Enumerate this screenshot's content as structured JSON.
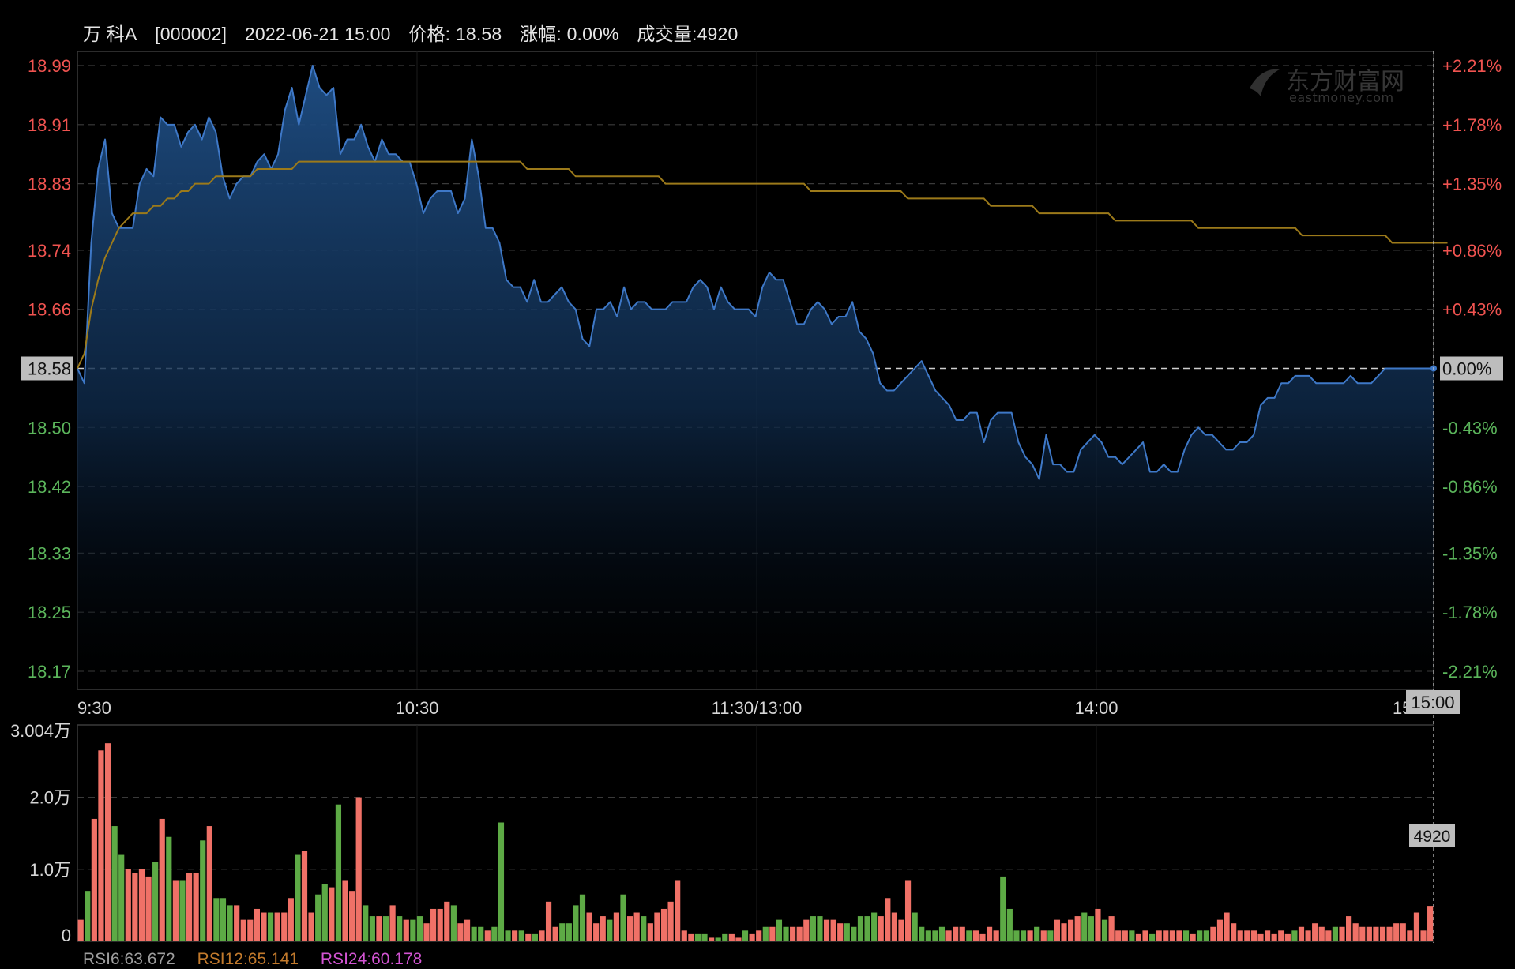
{
  "header": {
    "name": "万 科A",
    "code": "[000002]",
    "datetime": "2022-06-21 15:00",
    "price_label": "价格: 18.58",
    "change_label": "涨幅: 0.00%",
    "volume_label": "成交量:4920"
  },
  "watermark": {
    "cn": "东方财富网",
    "en": "eastmoney.com",
    "icon": "eastmoney-logo-icon"
  },
  "chart_data": {
    "type": "line",
    "prev_close": 18.58,
    "price_axis": {
      "left_ticks": [
        "18.99",
        "18.91",
        "18.83",
        "18.74",
        "18.66",
        "18.58",
        "18.50",
        "18.42",
        "18.33",
        "18.25",
        "18.17"
      ],
      "right_ticks": [
        "+2.21%",
        "+1.78%",
        "+1.35%",
        "+0.86%",
        "+0.43%",
        "0.00%",
        "-0.43%",
        "-0.86%",
        "-1.35%",
        "-1.78%",
        "-2.21%"
      ],
      "ylim": [
        18.17,
        18.99
      ]
    },
    "time_axis": {
      "ticks": [
        "9:30",
        "10:30",
        "11:30/13:00",
        "14:00",
        "15:00"
      ],
      "crosshair_label": "15:00"
    },
    "price_series": [
      18.58,
      18.56,
      18.75,
      18.85,
      18.89,
      18.79,
      18.77,
      18.77,
      18.77,
      18.83,
      18.85,
      18.84,
      18.92,
      18.91,
      18.91,
      18.88,
      18.9,
      18.91,
      18.89,
      18.92,
      18.9,
      18.84,
      18.81,
      18.83,
      18.84,
      18.84,
      18.86,
      18.87,
      18.85,
      18.87,
      18.93,
      18.96,
      18.91,
      18.95,
      18.99,
      18.96,
      18.95,
      18.96,
      18.87,
      18.89,
      18.89,
      18.91,
      18.88,
      18.86,
      18.89,
      18.87,
      18.87,
      18.86,
      18.86,
      18.83,
      18.79,
      18.81,
      18.82,
      18.82,
      18.82,
      18.79,
      18.81,
      18.89,
      18.84,
      18.77,
      18.77,
      18.75,
      18.7,
      18.69,
      18.69,
      18.67,
      18.7,
      18.67,
      18.67,
      18.68,
      18.69,
      18.67,
      18.66,
      18.62,
      18.61,
      18.66,
      18.66,
      18.67,
      18.65,
      18.69,
      18.66,
      18.67,
      18.67,
      18.66,
      18.66,
      18.66,
      18.67,
      18.67,
      18.67,
      18.69,
      18.7,
      18.69,
      18.66,
      18.69,
      18.67,
      18.66,
      18.66,
      18.66,
      18.65,
      18.69,
      18.71,
      18.7,
      18.7,
      18.67,
      18.64,
      18.64,
      18.66,
      18.67,
      18.66,
      18.64,
      18.65,
      18.65,
      18.67,
      18.63,
      18.62,
      18.6,
      18.56,
      18.55,
      18.55,
      18.56,
      18.57,
      18.58,
      18.59,
      18.57,
      18.55,
      18.54,
      18.53,
      18.51,
      18.51,
      18.52,
      18.52,
      18.48,
      18.51,
      18.52,
      18.52,
      18.52,
      18.48,
      18.46,
      18.45,
      18.43,
      18.49,
      18.45,
      18.45,
      18.44,
      18.44,
      18.47,
      18.48,
      18.49,
      18.48,
      18.46,
      18.46,
      18.45,
      18.46,
      18.47,
      18.48,
      18.44,
      18.44,
      18.45,
      18.44,
      18.44,
      18.47,
      18.49,
      18.5,
      18.49,
      18.49,
      18.48,
      18.47,
      18.47,
      18.48,
      18.48,
      18.49,
      18.53,
      18.54,
      18.54,
      18.56,
      18.56,
      18.57,
      18.57,
      18.57,
      18.56,
      18.56,
      18.56,
      18.56,
      18.56,
      18.57,
      18.56,
      18.56,
      18.56,
      18.57,
      18.58,
      18.58,
      18.58,
      18.58,
      18.58,
      18.58,
      18.58,
      18.58
    ],
    "avg_series": [
      18.58,
      18.6,
      18.66,
      18.7,
      18.73,
      18.75,
      18.77,
      18.78,
      18.79,
      18.79,
      18.79,
      18.8,
      18.8,
      18.81,
      18.81,
      18.82,
      18.82,
      18.83,
      18.83,
      18.83,
      18.84,
      18.84,
      18.84,
      18.84,
      18.84,
      18.84,
      18.85,
      18.85,
      18.85,
      18.85,
      18.85,
      18.85,
      18.86,
      18.86,
      18.86,
      18.86,
      18.86,
      18.86,
      18.86,
      18.86,
      18.86,
      18.86,
      18.86,
      18.86,
      18.86,
      18.86,
      18.86,
      18.86,
      18.86,
      18.86,
      18.86,
      18.86,
      18.86,
      18.86,
      18.86,
      18.86,
      18.86,
      18.86,
      18.86,
      18.86,
      18.86,
      18.86,
      18.86,
      18.86,
      18.86,
      18.85,
      18.85,
      18.85,
      18.85,
      18.85,
      18.85,
      18.85,
      18.84,
      18.84,
      18.84,
      18.84,
      18.84,
      18.84,
      18.84,
      18.84,
      18.84,
      18.84,
      18.84,
      18.84,
      18.84,
      18.83,
      18.83,
      18.83,
      18.83,
      18.83,
      18.83,
      18.83,
      18.83,
      18.83,
      18.83,
      18.83,
      18.83,
      18.83,
      18.83,
      18.83,
      18.83,
      18.83,
      18.83,
      18.83,
      18.83,
      18.83,
      18.82,
      18.82,
      18.82,
      18.82,
      18.82,
      18.82,
      18.82,
      18.82,
      18.82,
      18.82,
      18.82,
      18.82,
      18.82,
      18.82,
      18.81,
      18.81,
      18.81,
      18.81,
      18.81,
      18.81,
      18.81,
      18.81,
      18.81,
      18.81,
      18.81,
      18.81,
      18.8,
      18.8,
      18.8,
      18.8,
      18.8,
      18.8,
      18.8,
      18.79,
      18.79,
      18.79,
      18.79,
      18.79,
      18.79,
      18.79,
      18.79,
      18.79,
      18.79,
      18.79,
      18.78,
      18.78,
      18.78,
      18.78,
      18.78,
      18.78,
      18.78,
      18.78,
      18.78,
      18.78,
      18.78,
      18.78,
      18.77,
      18.77,
      18.77,
      18.77,
      18.77,
      18.77,
      18.77,
      18.77,
      18.77,
      18.77,
      18.77,
      18.77,
      18.77,
      18.77,
      18.77,
      18.76,
      18.76,
      18.76,
      18.76,
      18.76,
      18.76,
      18.76,
      18.76,
      18.76,
      18.76,
      18.76,
      18.76,
      18.76,
      18.75,
      18.75,
      18.75,
      18.75,
      18.75,
      18.75,
      18.75,
      18.75,
      18.75
    ],
    "volume_axis": {
      "ticks": [
        "3.004万",
        "2.0万",
        "1.0万",
        "0"
      ],
      "ylim": [
        0,
        30040
      ],
      "current_label": "4920"
    },
    "volume_series": [
      3000,
      7000,
      17000,
      26500,
      27500,
      16000,
      12000,
      10000,
      9500,
      10000,
      9000,
      11000,
      17000,
      14500,
      8500,
      8500,
      9500,
      9500,
      14000,
      16000,
      6000,
      6000,
      5000,
      5000,
      3000,
      3000,
      4500,
      4000,
      4000,
      4000,
      4000,
      6000,
      12000,
      12500,
      4000,
      6500,
      8000,
      7500,
      19000,
      8500,
      7000,
      20000,
      5000,
      3500,
      3500,
      3500,
      5000,
      3500,
      3000,
      3000,
      3500,
      2500,
      4500,
      4500,
      5500,
      5000,
      2500,
      3000,
      2000,
      2000,
      1500,
      2000,
      16500,
      1500,
      1500,
      1500,
      1000,
      1000,
      1500,
      5500,
      2000,
      2500,
      2500,
      5000,
      6500,
      4000,
      2500,
      3500,
      3000,
      4000,
      6500,
      3500,
      4000,
      3500,
      2500,
      4000,
      4500,
      5500,
      8500,
      1500,
      1000,
      1000,
      1000,
      500,
      500,
      1000,
      1000,
      500,
      1500,
      1000,
      1500,
      2000,
      2000,
      3000,
      2000,
      2000,
      2000,
      3000,
      3500,
      3500,
      3000,
      3000,
      2500,
      2500,
      2000,
      3500,
      3500,
      4000,
      3500,
      6000,
      4000,
      3000,
      8500,
      4000,
      2000,
      1500,
      1500,
      2000,
      1500,
      2000,
      2000,
      1500,
      1500,
      1000,
      2000,
      1500,
      9000,
      4500,
      1500,
      1500,
      1500,
      2000,
      1500,
      1500,
      3000,
      2500,
      3000,
      3500,
      4000,
      3500,
      4500,
      3000,
      3500,
      1500,
      1500,
      1500,
      1000,
      1500,
      1000,
      1500,
      1500,
      1500,
      1500,
      1500,
      1000,
      1500,
      1500,
      2000,
      3000,
      4000,
      2500,
      1500,
      1500,
      1500,
      1000,
      1500,
      1000,
      1500,
      1000,
      1500,
      2000,
      1500,
      2500,
      2000,
      1500,
      2000,
      2000,
      3500,
      2500,
      2000,
      2000,
      2000,
      2000,
      2000,
      2500,
      2500,
      1500,
      4000,
      1500,
      4920
    ],
    "indicators": {
      "rsi6": "RSI6:63.672",
      "rsi12": "RSI12:65.141",
      "rsi24": "RSI24:60.178"
    },
    "colors": {
      "background": "#000000",
      "price_line": "#3e78c7",
      "avg_line": "#9c7a1a",
      "up_text": "#f05350",
      "down_text": "#5bb55b",
      "vol_up": "#f07167",
      "vol_down": "#5daa45",
      "rsi6": "#9e9e9e",
      "rsi12": "#c27a2c",
      "rsi24": "#d354d3"
    }
  }
}
